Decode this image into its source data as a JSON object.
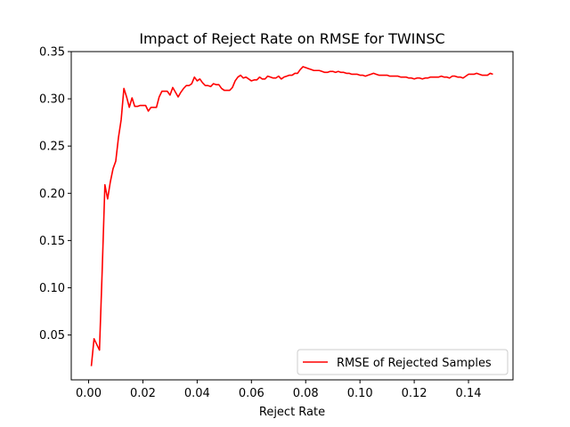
{
  "chart_data": {
    "type": "line",
    "title": "Impact of Reject Rate on RMSE for TWINSC",
    "xlabel": "Reject Rate",
    "ylabel": "",
    "xlim": [
      -0.0064,
      0.1564
    ],
    "ylim": [
      0.0025,
      0.35
    ],
    "xticks": [
      0.0,
      0.02,
      0.04,
      0.06,
      0.08,
      0.1,
      0.12,
      0.14
    ],
    "xtick_labels": [
      "0.00",
      "0.02",
      "0.04",
      "0.06",
      "0.08",
      "0.10",
      "0.12",
      "0.14"
    ],
    "yticks": [
      0.05,
      0.1,
      0.15,
      0.2,
      0.25,
      0.3,
      0.35
    ],
    "ytick_labels": [
      "0.05",
      "0.10",
      "0.15",
      "0.20",
      "0.25",
      "0.30",
      "0.35"
    ],
    "grid": false,
    "legend": {
      "location": "lower-right",
      "entries": [
        "RMSE of Rejected Samples"
      ]
    },
    "series": [
      {
        "name": "RMSE of Rejected Samples",
        "color": "#ff0000",
        "x": [
          0.001,
          0.002,
          0.003,
          0.004,
          0.005,
          0.006,
          0.007,
          0.008,
          0.009,
          0.01,
          0.011,
          0.012,
          0.013,
          0.014,
          0.015,
          0.016,
          0.017,
          0.018,
          0.019,
          0.02,
          0.021,
          0.022,
          0.023,
          0.024,
          0.025,
          0.026,
          0.027,
          0.028,
          0.029,
          0.03,
          0.031,
          0.032,
          0.033,
          0.034,
          0.035,
          0.036,
          0.037,
          0.038,
          0.039,
          0.04,
          0.041,
          0.042,
          0.043,
          0.044,
          0.045,
          0.046,
          0.047,
          0.048,
          0.049,
          0.05,
          0.051,
          0.052,
          0.053,
          0.054,
          0.055,
          0.056,
          0.057,
          0.058,
          0.059,
          0.06,
          0.061,
          0.062,
          0.063,
          0.064,
          0.065,
          0.066,
          0.067,
          0.068,
          0.069,
          0.07,
          0.071,
          0.072,
          0.073,
          0.074,
          0.075,
          0.076,
          0.077,
          0.078,
          0.079,
          0.08,
          0.081,
          0.082,
          0.083,
          0.084,
          0.085,
          0.086,
          0.087,
          0.088,
          0.089,
          0.09,
          0.091,
          0.092,
          0.093,
          0.094,
          0.095,
          0.096,
          0.097,
          0.098,
          0.099,
          0.1,
          0.101,
          0.102,
          0.103,
          0.104,
          0.105,
          0.106,
          0.107,
          0.108,
          0.109,
          0.11,
          0.111,
          0.112,
          0.113,
          0.114,
          0.115,
          0.116,
          0.117,
          0.118,
          0.119,
          0.12,
          0.121,
          0.122,
          0.123,
          0.124,
          0.125,
          0.126,
          0.127,
          0.128,
          0.129,
          0.13,
          0.131,
          0.132,
          0.133,
          0.134,
          0.135,
          0.136,
          0.137,
          0.138,
          0.139,
          0.14,
          0.141,
          0.142,
          0.143,
          0.144,
          0.145,
          0.146,
          0.147,
          0.148,
          0.149
        ],
        "y": [
          0.017,
          0.046,
          0.04,
          0.034,
          0.118,
          0.209,
          0.194,
          0.212,
          0.226,
          0.234,
          0.259,
          0.278,
          0.311,
          0.302,
          0.291,
          0.301,
          0.292,
          0.292,
          0.293,
          0.293,
          0.293,
          0.287,
          0.291,
          0.291,
          0.291,
          0.302,
          0.308,
          0.308,
          0.308,
          0.304,
          0.312,
          0.307,
          0.302,
          0.307,
          0.311,
          0.314,
          0.314,
          0.316,
          0.323,
          0.319,
          0.321,
          0.317,
          0.314,
          0.314,
          0.313,
          0.316,
          0.315,
          0.315,
          0.311,
          0.309,
          0.309,
          0.309,
          0.312,
          0.319,
          0.323,
          0.325,
          0.322,
          0.323,
          0.321,
          0.319,
          0.32,
          0.32,
          0.323,
          0.321,
          0.321,
          0.324,
          0.323,
          0.322,
          0.322,
          0.324,
          0.321,
          0.323,
          0.324,
          0.325,
          0.325,
          0.327,
          0.327,
          0.331,
          0.334,
          0.333,
          0.332,
          0.331,
          0.33,
          0.33,
          0.33,
          0.329,
          0.328,
          0.328,
          0.329,
          0.329,
          0.328,
          0.329,
          0.328,
          0.328,
          0.327,
          0.327,
          0.326,
          0.326,
          0.326,
          0.325,
          0.325,
          0.324,
          0.325,
          0.326,
          0.327,
          0.326,
          0.325,
          0.325,
          0.325,
          0.325,
          0.324,
          0.324,
          0.324,
          0.324,
          0.323,
          0.323,
          0.323,
          0.322,
          0.322,
          0.321,
          0.322,
          0.322,
          0.321,
          0.322,
          0.322,
          0.323,
          0.323,
          0.323,
          0.323,
          0.324,
          0.323,
          0.323,
          0.322,
          0.324,
          0.324,
          0.323,
          0.323,
          0.322,
          0.324,
          0.326,
          0.326,
          0.326,
          0.327,
          0.326,
          0.325,
          0.325,
          0.325,
          0.327,
          0.326
        ]
      }
    ]
  }
}
